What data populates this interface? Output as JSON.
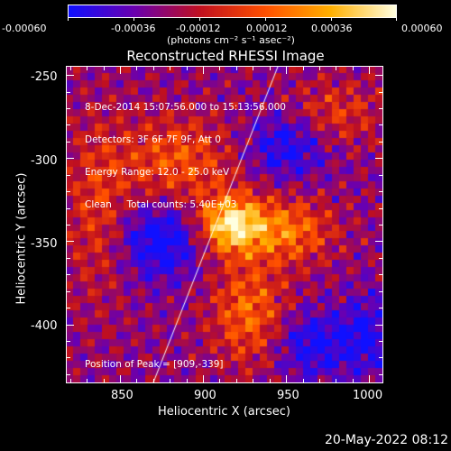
{
  "colorbar": {
    "tick_labels": [
      "-0.00060",
      "-0.00036",
      "-0.00012",
      "0.00012",
      "0.00036",
      "0.00060"
    ],
    "unit_label": "(photons cm⁻² s⁻¹ asec⁻²)",
    "colormap_stops": [
      "#1010ff",
      "#6a00b0",
      "#c01020",
      "#ff5000",
      "#ffb000",
      "#ffffe0"
    ]
  },
  "plot": {
    "title": "Reconstructed RHESSI Image",
    "xlabel": "Heliocentric X (arcsec)",
    "ylabel": "Heliocentric Y (arcsec)",
    "x_ticks": [
      "850",
      "900",
      "950",
      "1000"
    ],
    "y_ticks": [
      "-250",
      "-300",
      "-350",
      "-400"
    ],
    "xlim": [
      818,
      1008
    ],
    "ylim": [
      -435,
      -245
    ],
    "info_lines": [
      "8-Dec-2014 15:07:56.000 to 15:13:56.000",
      "Detectors: 3F 6F 7F 9F, Att 0",
      "Energy Range: 12.0 - 25.0 keV",
      "Clean     Total counts: 5.40E+03"
    ],
    "peak_text": "Position of Peak = [909,-339]"
  },
  "footer": {
    "timestamp": "20-May-2022 08:12"
  }
}
